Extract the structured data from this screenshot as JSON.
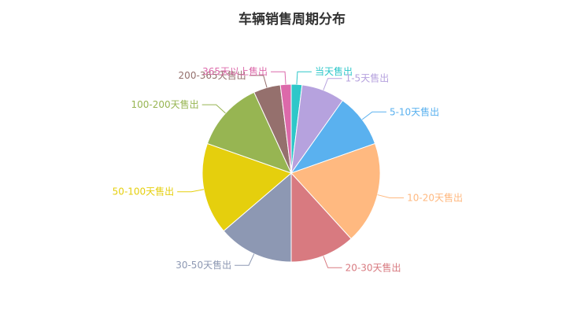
{
  "chart_data": {
    "type": "pie",
    "title": "车辆销售周期分布",
    "categories": [
      "当天售出",
      "1-5天售出",
      "5-10天售出",
      "10-20天售出",
      "20-30天售出",
      "30-50天售出",
      "50-100天售出",
      "100-200天售出",
      "200-365天售出",
      "365天以上售出"
    ],
    "values": [
      2,
      8,
      10,
      19,
      12,
      14,
      17,
      13,
      5,
      2
    ],
    "colors": [
      "#2ec7c9",
      "#b6a2de",
      "#5ab1ef",
      "#ffb980",
      "#d87a80",
      "#8d98b3",
      "#e5cf0d",
      "#97b552",
      "#95706d",
      "#dc69aa"
    ],
    "legend": "none",
    "labels": "outside-with-leader-lines"
  }
}
